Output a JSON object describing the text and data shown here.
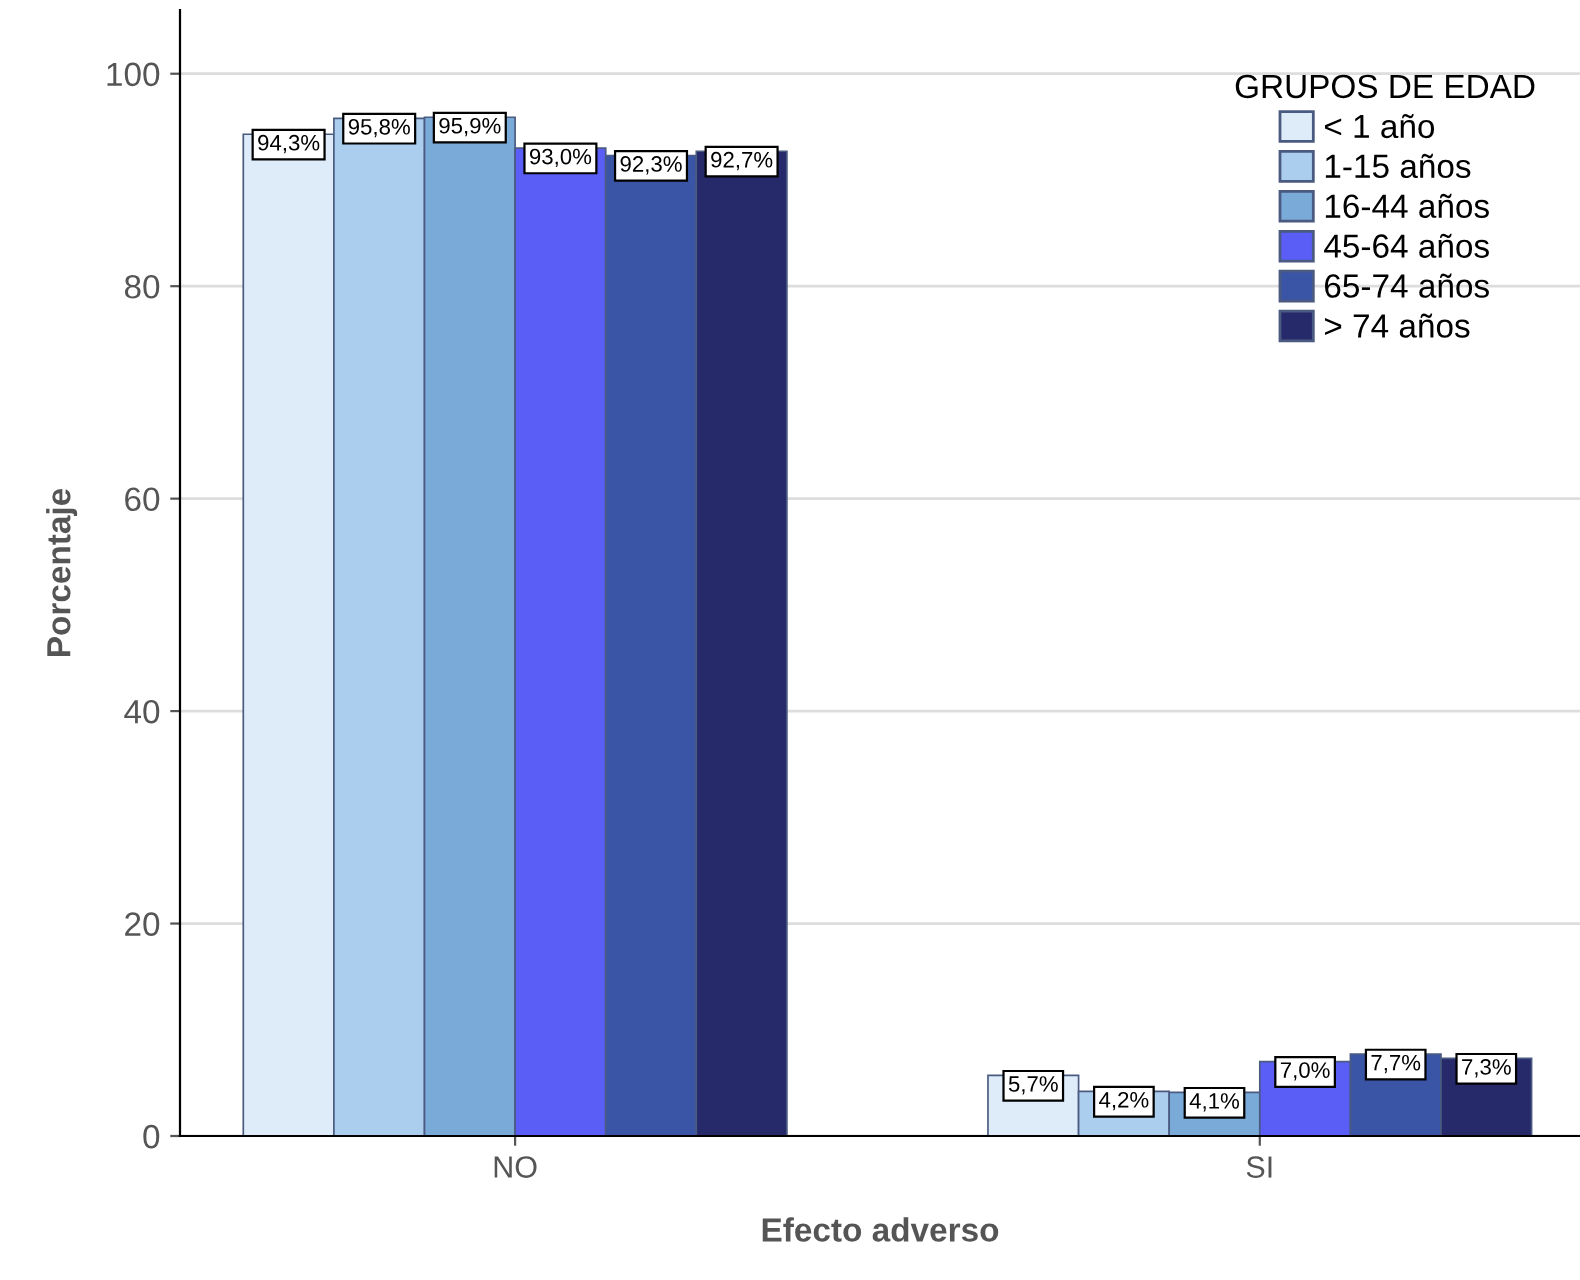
{
  "chart_data": {
    "type": "bar",
    "xlabel": "Efecto adverso",
    "ylabel": "Porcentaje",
    "legend_title": "GRUPOS DE EDAD",
    "categories": [
      "NO",
      "SI"
    ],
    "series": [
      {
        "name": "< 1 año",
        "color": "#deebf9",
        "values": [
          94.3,
          5.7
        ],
        "value_labels": [
          "94,3%",
          "5,7%"
        ]
      },
      {
        "name": "1-15 años",
        "color": "#abcdee",
        "values": [
          95.8,
          4.2
        ],
        "value_labels": [
          "95,8%",
          "4,2%"
        ]
      },
      {
        "name": "16-44 años",
        "color": "#7aaad7",
        "values": [
          95.9,
          4.1
        ],
        "value_labels": [
          "95,9%",
          "4,1%"
        ]
      },
      {
        "name": "45-64 años",
        "color": "#5a5ef6",
        "values": [
          93.0,
          7.0
        ],
        "value_labels": [
          "93,0%",
          "7,0%"
        ]
      },
      {
        "name": "65-74 años",
        "color": "#3a55a6",
        "values": [
          92.3,
          7.7
        ],
        "value_labels": [
          "92,3%",
          "7,7%"
        ]
      },
      {
        "name": "> 74 años",
        "color": "#262a6b",
        "values": [
          92.7,
          7.3
        ],
        "value_labels": [
          "92,7%",
          "7,3%"
        ]
      }
    ],
    "ylim": [
      0,
      106
    ],
    "yticks": [
      0,
      20,
      40,
      60,
      80,
      100
    ],
    "grid": "y",
    "legend": "top right"
  }
}
